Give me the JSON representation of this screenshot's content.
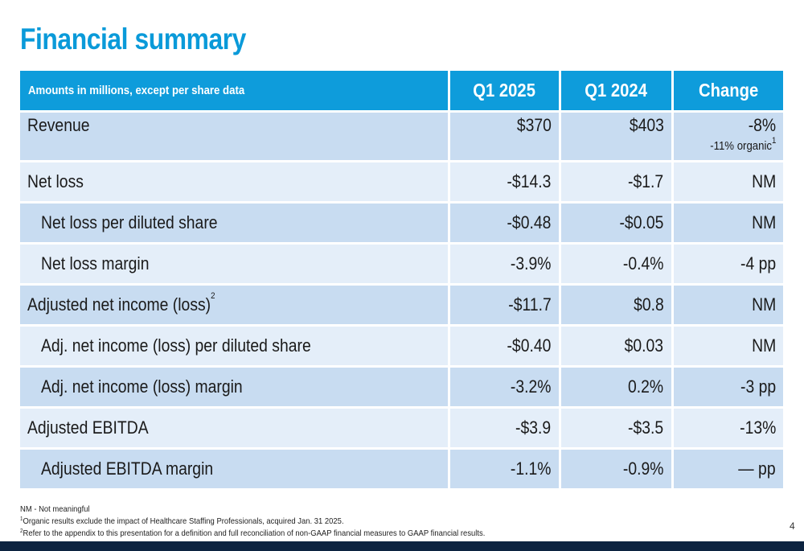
{
  "title": "Financial summary",
  "header": {
    "label": "Amounts in millions, except per share data",
    "col1": "Q1 2025",
    "col2": "Q1 2024",
    "col3": "Change"
  },
  "rows": [
    {
      "label": "Revenue",
      "q1_2025": "$370",
      "q1_2024": "$403",
      "change": "-8%",
      "note": "-11% organic",
      "note_sup": "1"
    },
    {
      "label": "Net loss",
      "q1_2025": "-$14.3",
      "q1_2024": "-$1.7",
      "change": "NM"
    },
    {
      "label": "Net loss per diluted share",
      "q1_2025": "-$0.48",
      "q1_2024": "-$0.05",
      "change": "NM"
    },
    {
      "label": "Net loss margin",
      "q1_2025": "-3.9%",
      "q1_2024": "-0.4%",
      "change": "-4 pp"
    },
    {
      "label": "Adjusted net income (loss)",
      "label_sup": "2",
      "q1_2025": "-$11.7",
      "q1_2024": "$0.8",
      "change": "NM"
    },
    {
      "label": "Adj. net income (loss) per diluted share",
      "q1_2025": "-$0.40",
      "q1_2024": "$0.03",
      "change": "NM"
    },
    {
      "label": "Adj. net income (loss) margin",
      "q1_2025": "-3.2%",
      "q1_2024": "0.2%",
      "change": "-3 pp"
    },
    {
      "label": "Adjusted EBITDA",
      "q1_2025": "-$3.9",
      "q1_2024": "-$3.5",
      "change": "-13%"
    },
    {
      "label": "Adjusted EBITDA margin",
      "q1_2025": "-1.1%",
      "q1_2024": "-0.9%",
      "change": "— pp"
    }
  ],
  "footnotes": {
    "nm": "NM - Not meaningful",
    "fn1_sup": "1",
    "fn1": "Organic results exclude the impact of Healthcare Staffing Professionals, acquired Jan. 31 2025.",
    "fn2_sup": "2",
    "fn2": "Refer to the appendix to this presentation for a definition and full reconciliation of non-GAAP financial measures to GAAP financial results."
  },
  "page_number": "4",
  "colors": {
    "title": "#0a9ad9",
    "header_bg": "#0e9cdb",
    "row_dark": "#c8dcf1",
    "row_light": "#e4eef9",
    "bottom_bar": "#0c2340"
  }
}
